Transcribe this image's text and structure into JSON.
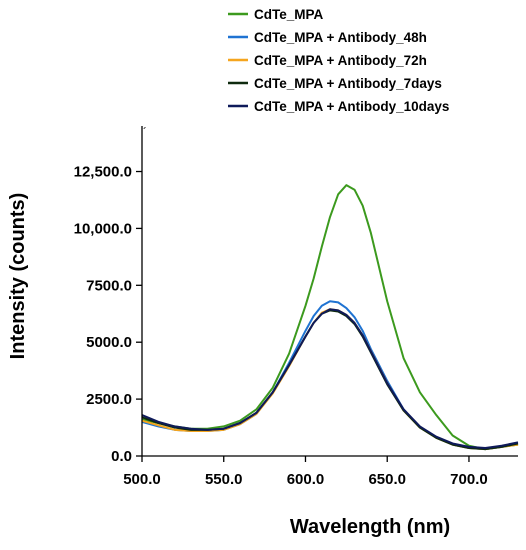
{
  "chart_data": {
    "type": "line",
    "xlabel": "Wavelength (nm)",
    "ylabel": "Intensity (counts)",
    "xlim": [
      500,
      730
    ],
    "ylim": [
      0,
      14500
    ],
    "x_ticks": [
      500,
      550,
      600,
      650,
      700
    ],
    "x_tick_labels": [
      "500.0",
      "550.0",
      "600.0",
      "650.0",
      "700.0"
    ],
    "y_ticks": [
      0,
      2500,
      5000,
      7500,
      10000,
      12500
    ],
    "y_tick_labels": [
      "0.0",
      "2500.0",
      "5000.0",
      "7500.0",
      "10,000.0",
      "12,500.0"
    ],
    "stray_mark": "´",
    "legend_position": "top-right (above plot)",
    "grid": false,
    "x": [
      500,
      510,
      520,
      530,
      540,
      550,
      560,
      570,
      580,
      590,
      600,
      605,
      610,
      615,
      620,
      625,
      630,
      635,
      640,
      650,
      660,
      670,
      680,
      690,
      700,
      710,
      720,
      730
    ],
    "series": [
      {
        "name": "CdTe_MPA",
        "color": "#3c9a1e",
        "values": [
          1600,
          1450,
          1300,
          1200,
          1200,
          1300,
          1550,
          2050,
          3000,
          4500,
          6600,
          7800,
          9200,
          10500,
          11500,
          11900,
          11700,
          11000,
          9800,
          6800,
          4300,
          2800,
          1800,
          900,
          450,
          300,
          400,
          500
        ]
      },
      {
        "name": "CdTe_MPA + Antibody_48h",
        "color": "#1f73d2",
        "values": [
          1500,
          1300,
          1150,
          1100,
          1100,
          1150,
          1400,
          1850,
          2800,
          4100,
          5500,
          6150,
          6600,
          6800,
          6750,
          6500,
          6100,
          5500,
          4700,
          3300,
          2050,
          1250,
          800,
          500,
          350,
          300,
          400,
          550
        ]
      },
      {
        "name": "CdTe_MPA + Antibody_72h",
        "color": "#f5a51e",
        "values": [
          1550,
          1350,
          1150,
          1100,
          1100,
          1150,
          1400,
          1850,
          2750,
          3950,
          5250,
          5850,
          6300,
          6450,
          6400,
          6200,
          5850,
          5300,
          4600,
          3200,
          2000,
          1250,
          800,
          500,
          350,
          300,
          400,
          500
        ]
      },
      {
        "name": "CdTe_MPA + Antibody_7days",
        "color": "#0f2a0f",
        "values": [
          1700,
          1450,
          1250,
          1150,
          1150,
          1200,
          1450,
          1900,
          2800,
          4000,
          5250,
          5850,
          6250,
          6400,
          6350,
          6150,
          5800,
          5250,
          4550,
          3150,
          2000,
          1250,
          800,
          500,
          350,
          300,
          400,
          550
        ]
      },
      {
        "name": "CdTe_MPA + Antibody_10days",
        "color": "#0f1a5a",
        "values": [
          1800,
          1500,
          1300,
          1200,
          1150,
          1200,
          1450,
          1900,
          2800,
          4000,
          5250,
          5850,
          6250,
          6450,
          6400,
          6200,
          5850,
          5300,
          4600,
          3200,
          2050,
          1300,
          850,
          550,
          400,
          350,
          450,
          600
        ]
      }
    ]
  }
}
